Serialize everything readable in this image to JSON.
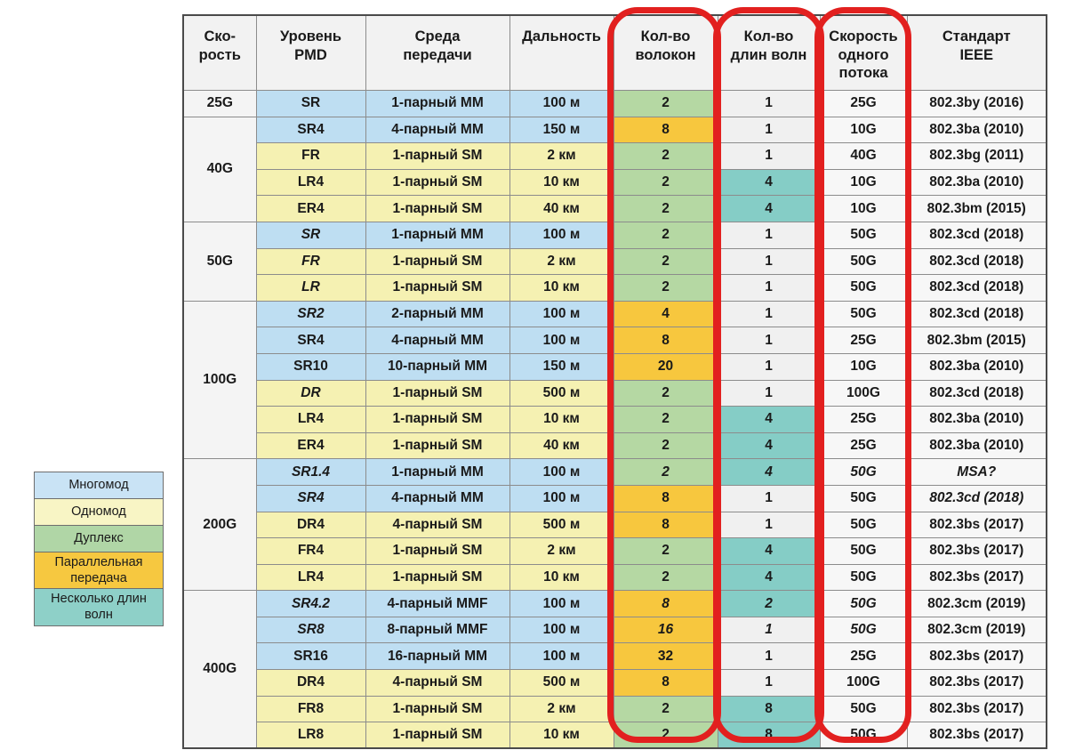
{
  "chart_data": {
    "type": "table",
    "columns": [
      "Ско-\nрость",
      "Уровень\nPMD",
      "Среда\nпередачи",
      "Дальность",
      "Кол-во\nволокон",
      "Кол-во\nдлин волн",
      "Скорость\nодного\nпотока",
      "Стандарт\nIEEE"
    ],
    "highlighted_columns": [
      "Кол-во волокон",
      "Кол-во длин волн",
      "Скорость одного потока"
    ],
    "sections": [
      {
        "speed": "25G",
        "rows": [
          {
            "pmd": "SR",
            "pmd_i": false,
            "medium": "1-парный MM",
            "dist": "100 м",
            "mode": "mm",
            "fibers": "2",
            "fibers_c": "duplex",
            "fibers_i": false,
            "wl": "1",
            "wl_c": "neutral",
            "wl_i": false,
            "lane": "25G",
            "lane_i": false,
            "std": "802.3by (2016)",
            "std_i": false
          }
        ]
      },
      {
        "speed": "40G",
        "rows": [
          {
            "pmd": "SR4",
            "pmd_i": false,
            "medium": "4-парный MM",
            "dist": "150 м",
            "mode": "mm",
            "fibers": "8",
            "fibers_c": "parallel",
            "fibers_i": false,
            "wl": "1",
            "wl_c": "neutral",
            "wl_i": false,
            "lane": "10G",
            "lane_i": false,
            "std": "802.3ba (2010)",
            "std_i": false
          },
          {
            "pmd": "FR",
            "pmd_i": false,
            "medium": "1-парный SM",
            "dist": "2 км",
            "mode": "sm",
            "fibers": "2",
            "fibers_c": "duplex",
            "fibers_i": false,
            "wl": "1",
            "wl_c": "neutral",
            "wl_i": false,
            "lane": "40G",
            "lane_i": false,
            "std": "802.3bg (2011)",
            "std_i": false
          },
          {
            "pmd": "LR4",
            "pmd_i": false,
            "medium": "1-парный SM",
            "dist": "10 км",
            "mode": "sm",
            "fibers": "2",
            "fibers_c": "duplex",
            "fibers_i": false,
            "wl": "4",
            "wl_c": "multiwave",
            "wl_i": false,
            "lane": "10G",
            "lane_i": false,
            "std": "802.3ba (2010)",
            "std_i": false
          },
          {
            "pmd": "ER4",
            "pmd_i": false,
            "medium": "1-парный SM",
            "dist": "40 км",
            "mode": "sm",
            "fibers": "2",
            "fibers_c": "duplex",
            "fibers_i": false,
            "wl": "4",
            "wl_c": "multiwave",
            "wl_i": false,
            "lane": "10G",
            "lane_i": false,
            "std": "802.3bm (2015)",
            "std_i": false
          }
        ]
      },
      {
        "speed": "50G",
        "rows": [
          {
            "pmd": "SR",
            "pmd_i": true,
            "medium": "1-парный MM",
            "dist": "100 м",
            "mode": "mm",
            "fibers": "2",
            "fibers_c": "duplex",
            "fibers_i": false,
            "wl": "1",
            "wl_c": "neutral",
            "wl_i": false,
            "lane": "50G",
            "lane_i": false,
            "std": "802.3cd (2018)",
            "std_i": false
          },
          {
            "pmd": "FR",
            "pmd_i": true,
            "medium": "1-парный SM",
            "dist": "2 км",
            "mode": "sm",
            "fibers": "2",
            "fibers_c": "duplex",
            "fibers_i": false,
            "wl": "1",
            "wl_c": "neutral",
            "wl_i": false,
            "lane": "50G",
            "lane_i": false,
            "std": "802.3cd (2018)",
            "std_i": false
          },
          {
            "pmd": "LR",
            "pmd_i": true,
            "medium": "1-парный SM",
            "dist": "10 км",
            "mode": "sm",
            "fibers": "2",
            "fibers_c": "duplex",
            "fibers_i": false,
            "wl": "1",
            "wl_c": "neutral",
            "wl_i": false,
            "lane": "50G",
            "lane_i": false,
            "std": "802.3cd (2018)",
            "std_i": false
          }
        ]
      },
      {
        "speed": "100G",
        "rows": [
          {
            "pmd": "SR2",
            "pmd_i": true,
            "medium": "2-парный MM",
            "dist": "100 м",
            "mode": "mm",
            "fibers": "4",
            "fibers_c": "parallel",
            "fibers_i": false,
            "wl": "1",
            "wl_c": "neutral",
            "wl_i": false,
            "lane": "50G",
            "lane_i": false,
            "std": "802.3cd (2018)",
            "std_i": false
          },
          {
            "pmd": "SR4",
            "pmd_i": false,
            "medium": "4-парный MM",
            "dist": "100 м",
            "mode": "mm",
            "fibers": "8",
            "fibers_c": "parallel",
            "fibers_i": false,
            "wl": "1",
            "wl_c": "neutral",
            "wl_i": false,
            "lane": "25G",
            "lane_i": false,
            "std": "802.3bm (2015)",
            "std_i": false
          },
          {
            "pmd": "SR10",
            "pmd_i": false,
            "medium": "10-парный MM",
            "dist": "150 м",
            "mode": "mm",
            "fibers": "20",
            "fibers_c": "parallel",
            "fibers_i": false,
            "wl": "1",
            "wl_c": "neutral",
            "wl_i": false,
            "lane": "10G",
            "lane_i": false,
            "std": "802.3ba (2010)",
            "std_i": false
          },
          {
            "pmd": "DR",
            "pmd_i": true,
            "medium": "1-парный SM",
            "dist": "500 м",
            "mode": "sm",
            "fibers": "2",
            "fibers_c": "duplex",
            "fibers_i": false,
            "wl": "1",
            "wl_c": "neutral",
            "wl_i": false,
            "lane": "100G",
            "lane_i": false,
            "std": "802.3cd (2018)",
            "std_i": false
          },
          {
            "pmd": "LR4",
            "pmd_i": false,
            "medium": "1-парный SM",
            "dist": "10 км",
            "mode": "sm",
            "fibers": "2",
            "fibers_c": "duplex",
            "fibers_i": false,
            "wl": "4",
            "wl_c": "multiwave",
            "wl_i": false,
            "lane": "25G",
            "lane_i": false,
            "std": "802.3ba (2010)",
            "std_i": false
          },
          {
            "pmd": "ER4",
            "pmd_i": false,
            "medium": "1-парный SM",
            "dist": "40 км",
            "mode": "sm",
            "fibers": "2",
            "fibers_c": "duplex",
            "fibers_i": false,
            "wl": "4",
            "wl_c": "multiwave",
            "wl_i": false,
            "lane": "25G",
            "lane_i": false,
            "std": "802.3ba (2010)",
            "std_i": false
          }
        ]
      },
      {
        "speed": "200G",
        "rows": [
          {
            "pmd": "SR1.4",
            "pmd_i": true,
            "medium": "1-парный MM",
            "dist": "100 м",
            "mode": "mm",
            "fibers": "2",
            "fibers_c": "duplex",
            "fibers_i": true,
            "wl": "4",
            "wl_c": "multiwave",
            "wl_i": true,
            "lane": "50G",
            "lane_i": true,
            "std": "MSA?",
            "std_i": true
          },
          {
            "pmd": "SR4",
            "pmd_i": true,
            "medium": "4-парный MM",
            "dist": "100 м",
            "mode": "mm",
            "fibers": "8",
            "fibers_c": "parallel",
            "fibers_i": false,
            "wl": "1",
            "wl_c": "neutral",
            "wl_i": false,
            "lane": "50G",
            "lane_i": false,
            "std": "802.3cd (2018)",
            "std_i": true
          },
          {
            "pmd": "DR4",
            "pmd_i": false,
            "medium": "4-парный SM",
            "dist": "500 м",
            "mode": "sm",
            "fibers": "8",
            "fibers_c": "parallel",
            "fibers_i": false,
            "wl": "1",
            "wl_c": "neutral",
            "wl_i": false,
            "lane": "50G",
            "lane_i": false,
            "std": "802.3bs (2017)",
            "std_i": false
          },
          {
            "pmd": "FR4",
            "pmd_i": false,
            "medium": "1-парный SM",
            "dist": "2 км",
            "mode": "sm",
            "fibers": "2",
            "fibers_c": "duplex",
            "fibers_i": false,
            "wl": "4",
            "wl_c": "multiwave",
            "wl_i": false,
            "lane": "50G",
            "lane_i": false,
            "std": "802.3bs (2017)",
            "std_i": false
          },
          {
            "pmd": "LR4",
            "pmd_i": false,
            "medium": "1-парный SM",
            "dist": "10 км",
            "mode": "sm",
            "fibers": "2",
            "fibers_c": "duplex",
            "fibers_i": false,
            "wl": "4",
            "wl_c": "multiwave",
            "wl_i": false,
            "lane": "50G",
            "lane_i": false,
            "std": "802.3bs (2017)",
            "std_i": false
          }
        ]
      },
      {
        "speed": "400G",
        "rows": [
          {
            "pmd": "SR4.2",
            "pmd_i": true,
            "medium": "4-парный MMF",
            "dist": "100 м",
            "mode": "mm",
            "fibers": "8",
            "fibers_c": "parallel",
            "fibers_i": true,
            "wl": "2",
            "wl_c": "multiwave",
            "wl_i": true,
            "lane": "50G",
            "lane_i": true,
            "std": "802.3cm (2019)",
            "std_i": false
          },
          {
            "pmd": "SR8",
            "pmd_i": true,
            "medium": "8-парный MMF",
            "dist": "100 м",
            "mode": "mm",
            "fibers": "16",
            "fibers_c": "parallel",
            "fibers_i": true,
            "wl": "1",
            "wl_c": "neutral",
            "wl_i": true,
            "lane": "50G",
            "lane_i": true,
            "std": "802.3cm (2019)",
            "std_i": false
          },
          {
            "pmd": "SR16",
            "pmd_i": false,
            "medium": "16-парный MM",
            "dist": "100 м",
            "mode": "mm",
            "fibers": "32",
            "fibers_c": "parallel",
            "fibers_i": false,
            "wl": "1",
            "wl_c": "neutral",
            "wl_i": false,
            "lane": "25G",
            "lane_i": false,
            "std": "802.3bs (2017)",
            "std_i": false
          },
          {
            "pmd": "DR4",
            "pmd_i": false,
            "medium": "4-парный SM",
            "dist": "500 м",
            "mode": "sm",
            "fibers": "8",
            "fibers_c": "parallel",
            "fibers_i": false,
            "wl": "1",
            "wl_c": "neutral",
            "wl_i": false,
            "lane": "100G",
            "lane_i": false,
            "std": "802.3bs (2017)",
            "std_i": false
          },
          {
            "pmd": "FR8",
            "pmd_i": false,
            "medium": "1-парный SM",
            "dist": "2 км",
            "mode": "sm",
            "fibers": "2",
            "fibers_c": "duplex",
            "fibers_i": false,
            "wl": "8",
            "wl_c": "multiwave",
            "wl_i": false,
            "lane": "50G",
            "lane_i": false,
            "std": "802.3bs (2017)",
            "std_i": false
          },
          {
            "pmd": "LR8",
            "pmd_i": false,
            "medium": "1-парный SM",
            "dist": "10 км",
            "mode": "sm",
            "fibers": "2",
            "fibers_c": "duplex",
            "fibers_i": false,
            "wl": "8",
            "wl_c": "multiwave",
            "wl_i": false,
            "lane": "50G",
            "lane_i": false,
            "std": "802.3bs (2017)",
            "std_i": false
          }
        ]
      }
    ],
    "legend": [
      {
        "label": "Многомод",
        "color": "#c9e3f5"
      },
      {
        "label": "Одномод",
        "color": "#f8f5c5"
      },
      {
        "label": "Дуплекс",
        "color": "#b0d6a6"
      },
      {
        "label": "Параллельная передача",
        "color": "#f6c840"
      },
      {
        "label": "Несколько длин волн",
        "color": "#8ed0c8"
      }
    ]
  },
  "colors": {
    "mm": "#bedef2",
    "sm": "#f5f1b2",
    "duplex": "#b5d8a3",
    "parallel": "#f7c73e",
    "multiwave": "#85cdc6",
    "neutral": "#f0f0f0",
    "lanebg": "#f7f7f7",
    "stdbg": "#f7f7f7",
    "speedcol": "#f4f4f4",
    "headerbg": "#f2f2f2",
    "highlight": "#e2201f",
    "grid": "#8c8c8c",
    "outer": "#4a4a4a"
  }
}
